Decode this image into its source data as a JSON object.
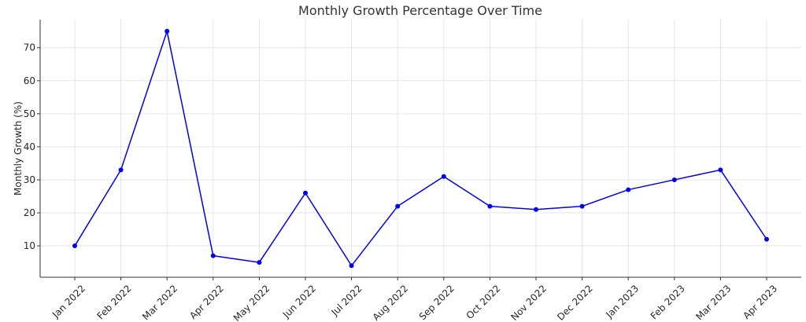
{
  "chart_data": {
    "type": "line",
    "title": "Monthly Growth Percentage Over Time",
    "xlabel": "",
    "ylabel": "Monthly Growth (%)",
    "categories": [
      "Jan 2022",
      "Feb 2022",
      "Mar 2022",
      "Apr 2022",
      "May 2022",
      "Jun 2022",
      "Jul 2022",
      "Aug 2022",
      "Sep 2022",
      "Oct 2022",
      "Nov 2022",
      "Dec 2022",
      "Jan 2023",
      "Feb 2023",
      "Mar 2023",
      "Apr 2023"
    ],
    "series": [
      {
        "values": [
          10,
          33,
          75,
          7,
          5,
          26,
          4,
          22,
          31,
          22,
          21,
          22,
          27,
          30,
          33,
          12
        ]
      }
    ],
    "yticks": [
      10,
      20,
      30,
      40,
      50,
      60,
      70
    ],
    "ylim": [
      0.5,
      78.5
    ],
    "grid": true,
    "legend": "none",
    "colors": {
      "line": "#0000ee",
      "marker": "#0000ee",
      "grid": "#e6e6e6",
      "axis": "#333333",
      "text": "#262626"
    }
  }
}
